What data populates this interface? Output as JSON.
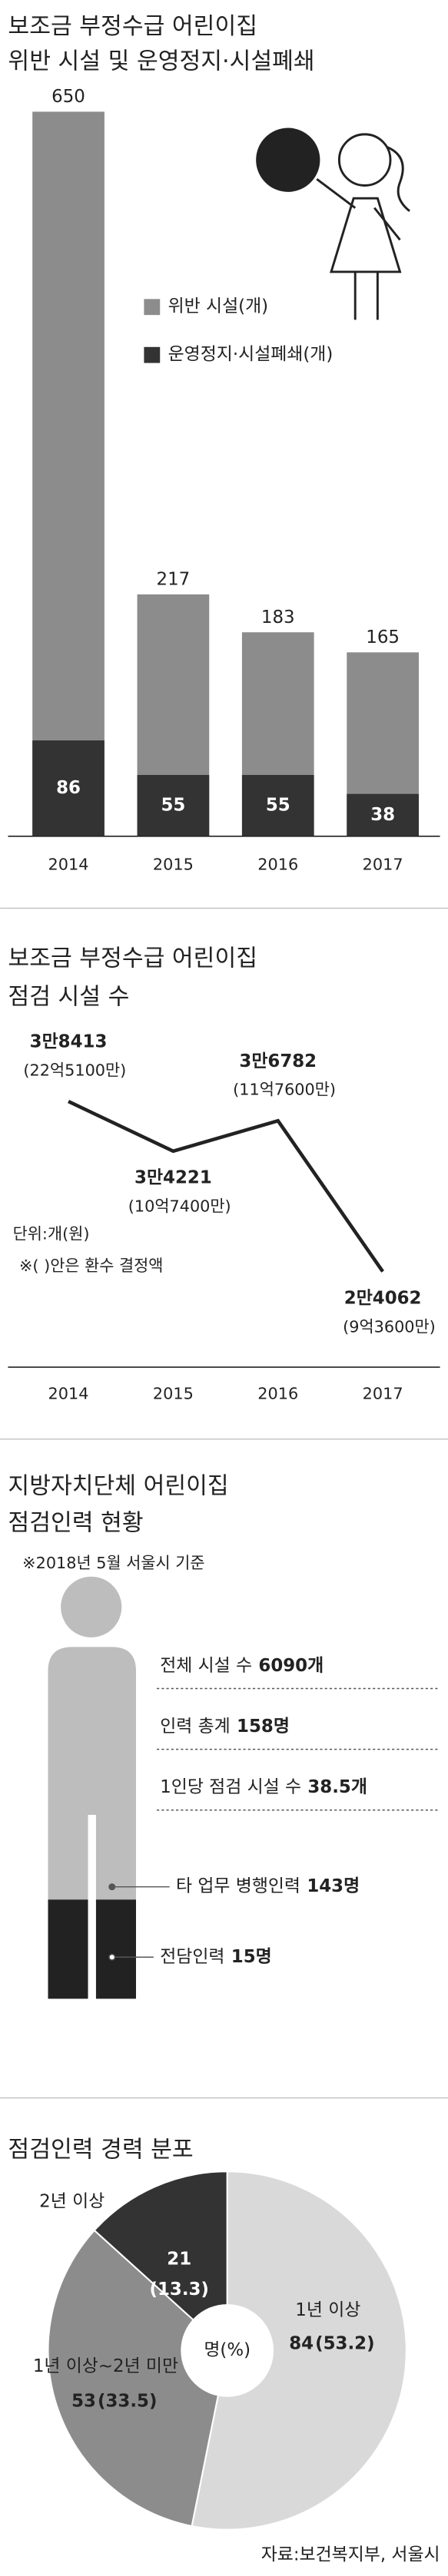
{
  "chart_data": [
    {
      "type": "bar",
      "title": [
        "보조금 부정수급 어린이집",
        "위반 시설 및 운영정지·시설폐쇄"
      ],
      "categories": [
        "2014",
        "2015",
        "2016",
        "2017"
      ],
      "series": [
        {
          "name": "위반 시설(개)",
          "color": "#8c8c8c",
          "values": [
            650,
            217,
            183,
            165
          ]
        },
        {
          "name": "운영정지·시설폐쇄(개)",
          "color": "#333333",
          "values": [
            86,
            55,
            55,
            38
          ]
        }
      ],
      "overlay": true,
      "ylim": [
        0,
        700
      ]
    },
    {
      "type": "line",
      "title": [
        "보조금 부정수급 어린이집",
        "점검 시설 수"
      ],
      "categories": [
        "2014",
        "2015",
        "2016",
        "2017"
      ],
      "series": [
        {
          "color": "#222222",
          "values": [
            38413,
            34221,
            36782,
            24062
          ],
          "value_labels": [
            "3만8413",
            "3만4221",
            "3만6782",
            "2만4062"
          ],
          "refund_labels": [
            "(22억5100만)",
            "(10억7400만)",
            "(11억7600만)",
            "(9억3600만)"
          ]
        }
      ],
      "notes": [
        "단위:개(원)",
        "※( )안은 환수 결정액"
      ],
      "ylim": [
        16000,
        45000
      ]
    },
    {
      "type": "pie",
      "title": "점검인력 경력 분포",
      "categories": [
        "1년 이상",
        "1년 이상~2년 미만",
        "2년 이상"
      ],
      "values": [
        84,
        53,
        21
      ],
      "percents": [
        53.2,
        33.5,
        13.3
      ],
      "percent_labels": [
        "(53.2)",
        "(33.5)",
        "(13.3)"
      ],
      "colors": [
        "#d9d9d9",
        "#8c8c8c",
        "#333333"
      ],
      "center_label": "명(%)"
    }
  ],
  "staffing": {
    "title": [
      "지방자치단체 어린이집",
      "점검인력 현황"
    ],
    "note": "※2018년 5월 서울시 기준",
    "items": [
      {
        "label": "전체 시설 수",
        "value": "6090개"
      },
      {
        "label": "인력 총계",
        "value": "158명"
      },
      {
        "label": "1인당 점검 시설 수",
        "value": "38.5개"
      },
      {
        "label": "타 업무 병행인력",
        "value": "143명"
      },
      {
        "label": "전담인력",
        "value": "15명"
      }
    ]
  },
  "source": "자료:보건복지부, 서울시"
}
